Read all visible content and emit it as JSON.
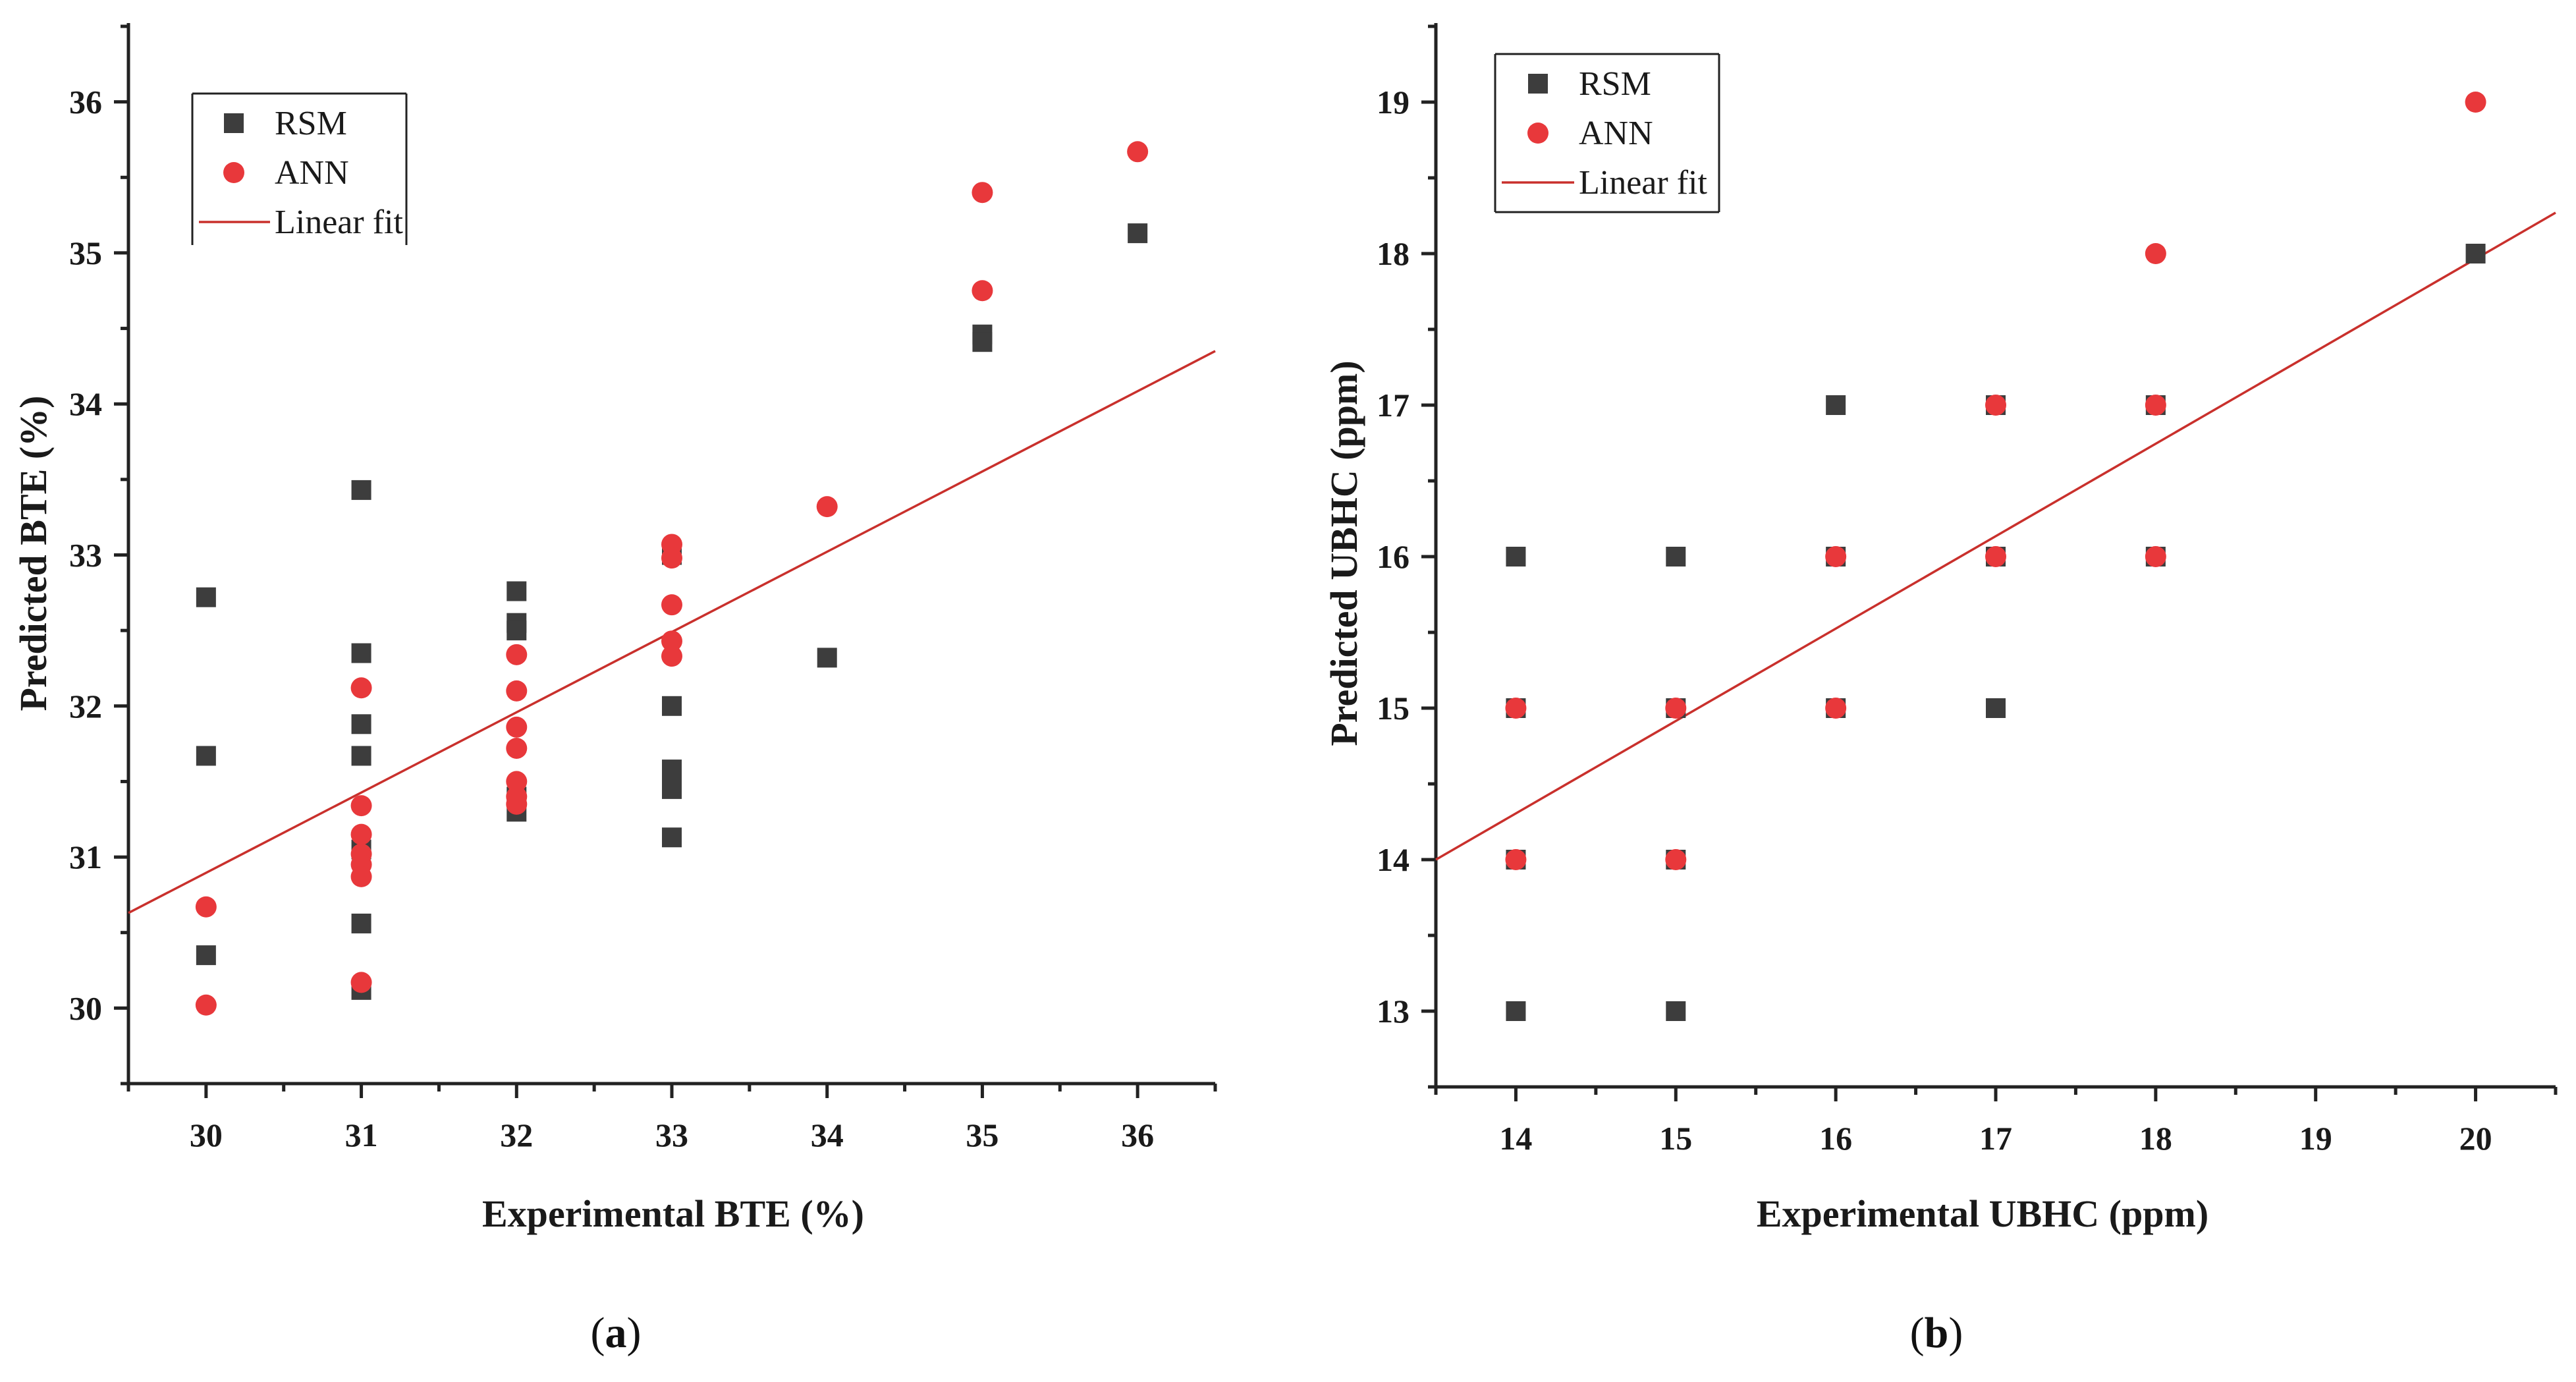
{
  "colors": {
    "rsm": "#3d3d3d",
    "ann": "#e8383b",
    "fit": "#c9302c",
    "axis": "#222222"
  },
  "chart_data": [
    {
      "type": "scatter",
      "panel_label": "a",
      "xlabel": "Experimental BTE (%)",
      "ylabel": "Predicted BTE (%)",
      "xlim": [
        29.5,
        36.5
      ],
      "ylim": [
        29.5,
        36.5
      ],
      "xticks": [
        30,
        31,
        32,
        33,
        34,
        35,
        36
      ],
      "yticks": [
        30,
        31,
        32,
        33,
        34,
        35,
        36
      ],
      "legend": [
        "RSM",
        "ANN",
        "Linear fit"
      ],
      "series": [
        {
          "name": "RSM",
          "marker": "square",
          "x": [
            30,
            30,
            30,
            31,
            31,
            31,
            31,
            31,
            31,
            31,
            32,
            32,
            32,
            32,
            32,
            33,
            33,
            33,
            33,
            33,
            34,
            35,
            35,
            36
          ],
          "y": [
            32.72,
            31.67,
            30.35,
            33.43,
            32.35,
            31.88,
            31.67,
            31.05,
            30.56,
            30.12,
            32.76,
            32.55,
            32.5,
            31.4,
            31.3,
            32.0,
            31.58,
            31.45,
            31.13,
            33.0,
            32.32,
            34.46,
            34.41,
            35.13
          ]
        },
        {
          "name": "ANN",
          "marker": "circle",
          "x": [
            30,
            30,
            31,
            31,
            31,
            31,
            31,
            31,
            31,
            32,
            32,
            32,
            32,
            32,
            32,
            32,
            33,
            33,
            33,
            33,
            33,
            34,
            35,
            35,
            36
          ],
          "y": [
            30.67,
            30.02,
            32.12,
            31.34,
            31.15,
            31.02,
            30.95,
            30.87,
            30.17,
            32.34,
            32.1,
            31.86,
            31.72,
            31.5,
            31.4,
            31.35,
            33.07,
            32.98,
            32.67,
            32.43,
            32.33,
            33.32,
            35.4,
            34.75,
            35.67
          ]
        },
        {
          "name": "Linear fit",
          "type": "line",
          "x": [
            29.5,
            36.5
          ],
          "y": [
            30.63,
            34.35
          ]
        }
      ]
    },
    {
      "type": "scatter",
      "panel_label": "b",
      "xlabel": "Experimental UBHC (ppm)",
      "ylabel": "Predicted UBHC (ppm)",
      "xlim": [
        13.5,
        20.5
      ],
      "ylim": [
        12.5,
        19.5
      ],
      "xticks": [
        14,
        15,
        16,
        17,
        18,
        19,
        20
      ],
      "yticks": [
        13,
        14,
        15,
        16,
        17,
        18,
        19
      ],
      "legend": [
        "RSM",
        "ANN",
        "Linear fit"
      ],
      "series": [
        {
          "name": "RSM",
          "marker": "square",
          "x": [
            14,
            14,
            14,
            14,
            15,
            15,
            15,
            15,
            16,
            16,
            16,
            17,
            17,
            17,
            18,
            18,
            20
          ],
          "y": [
            16,
            15,
            14,
            13,
            16,
            15,
            14,
            13,
            17,
            16,
            15,
            17,
            16,
            15,
            17,
            16,
            18
          ]
        },
        {
          "name": "ANN",
          "marker": "circle",
          "x": [
            14,
            14,
            15,
            15,
            16,
            16,
            17,
            17,
            18,
            18,
            18,
            20
          ],
          "y": [
            15,
            14,
            15,
            14,
            16,
            15,
            17,
            16,
            18,
            17,
            16,
            19
          ]
        },
        {
          "name": "Linear fit",
          "type": "line",
          "x": [
            13.5,
            20.5
          ],
          "y": [
            14.0,
            18.27
          ]
        }
      ]
    }
  ]
}
